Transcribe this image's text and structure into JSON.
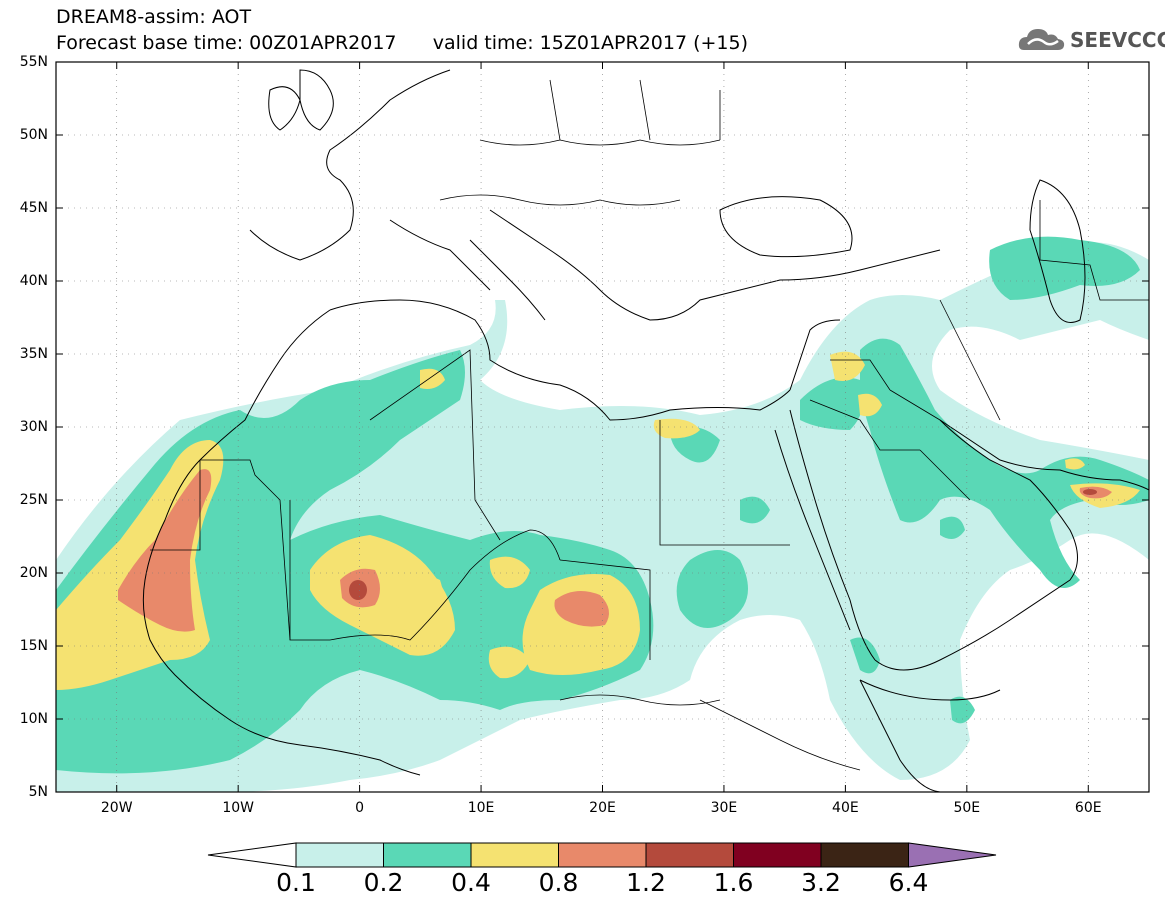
{
  "header": {
    "title_line1": "DREAM8-assim: AOT",
    "title_line2": "Forecast base time: 00Z01APR2017      valid time: 15Z01APR2017 (+15)",
    "logo_text": "SEEVCCC"
  },
  "map": {
    "lat_range": [
      5,
      55
    ],
    "lon_range": [
      -25,
      65
    ],
    "lat_ticks": [
      "55N",
      "50N",
      "45N",
      "40N",
      "35N",
      "30N",
      "25N",
      "20N",
      "15N",
      "10N",
      "5N"
    ],
    "lon_ticks": [
      "20W",
      "10W",
      "0",
      "10E",
      "20E",
      "30E",
      "40E",
      "50E",
      "60E"
    ],
    "variable": "AOT",
    "colors": {
      "c0": "#c8f0ea",
      "c1": "#5ad8b6",
      "c2": "#f5e271",
      "c3": "#e8896a",
      "c4": "#b44a3c",
      "c5": "#800020",
      "c6": "#3b2415",
      "c7": "#9a70b3"
    }
  },
  "colorbar": {
    "labels": [
      "0.1",
      "0.2",
      "0.4",
      "0.8",
      "1.2",
      "1.6",
      "3.2",
      "6.4"
    ]
  }
}
